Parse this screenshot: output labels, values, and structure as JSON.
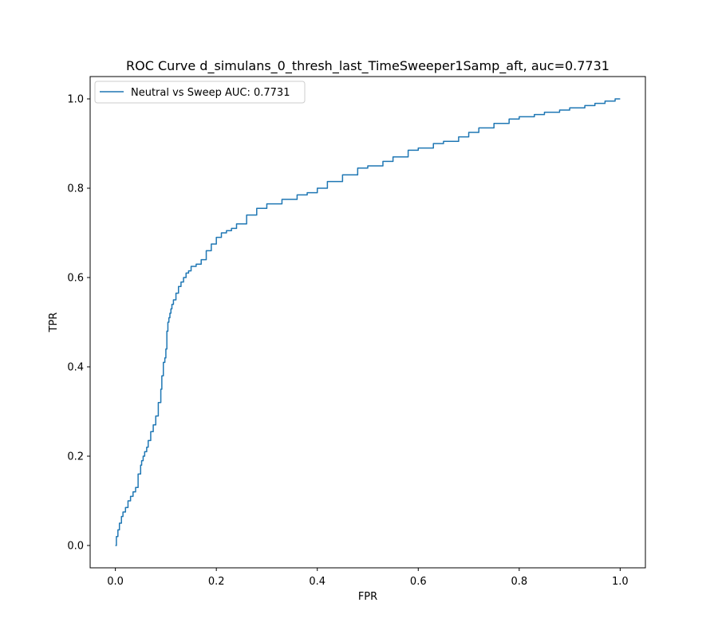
{
  "chart_data": {
    "type": "line",
    "title": "ROC Curve d_simulans_0_thresh_last_TimeSweeper1Samp_aft, auc=0.7731",
    "xlabel": "FPR",
    "ylabel": "TPR",
    "xlim": [
      -0.05,
      1.05
    ],
    "ylim": [
      -0.05,
      1.05
    ],
    "xticks": [
      0.0,
      0.2,
      0.4,
      0.6,
      0.8,
      1.0
    ],
    "yticks": [
      0.0,
      0.2,
      0.4,
      0.6,
      0.8,
      1.0
    ],
    "xtick_labels": [
      "0.0",
      "0.2",
      "0.4",
      "0.6",
      "0.8",
      "1.0"
    ],
    "ytick_labels": [
      "0.0",
      "0.2",
      "0.4",
      "0.6",
      "0.8",
      "1.0"
    ],
    "grid": false,
    "legend_position": "upper left",
    "series": [
      {
        "name": "Neutral vs Sweep AUC: 0.7731",
        "color": "#1f77b4",
        "x": [
          0.0,
          0.002,
          0.005,
          0.008,
          0.012,
          0.015,
          0.02,
          0.025,
          0.03,
          0.035,
          0.04,
          0.045,
          0.05,
          0.052,
          0.055,
          0.058,
          0.062,
          0.065,
          0.07,
          0.075,
          0.08,
          0.085,
          0.09,
          0.092,
          0.095,
          0.098,
          0.1,
          0.102,
          0.104,
          0.106,
          0.108,
          0.11,
          0.112,
          0.115,
          0.12,
          0.125,
          0.13,
          0.135,
          0.14,
          0.145,
          0.15,
          0.16,
          0.17,
          0.18,
          0.19,
          0.2,
          0.21,
          0.22,
          0.23,
          0.24,
          0.26,
          0.28,
          0.3,
          0.33,
          0.36,
          0.38,
          0.4,
          0.42,
          0.45,
          0.48,
          0.5,
          0.53,
          0.55,
          0.58,
          0.6,
          0.63,
          0.65,
          0.68,
          0.7,
          0.72,
          0.75,
          0.78,
          0.8,
          0.83,
          0.85,
          0.88,
          0.9,
          0.93,
          0.95,
          0.97,
          0.99,
          1.0
        ],
        "y": [
          0.0,
          0.02,
          0.035,
          0.05,
          0.065,
          0.075,
          0.085,
          0.1,
          0.11,
          0.12,
          0.13,
          0.16,
          0.18,
          0.19,
          0.2,
          0.21,
          0.22,
          0.235,
          0.255,
          0.27,
          0.29,
          0.32,
          0.35,
          0.38,
          0.41,
          0.42,
          0.44,
          0.48,
          0.5,
          0.51,
          0.52,
          0.53,
          0.54,
          0.55,
          0.565,
          0.58,
          0.59,
          0.6,
          0.61,
          0.615,
          0.625,
          0.63,
          0.64,
          0.66,
          0.675,
          0.69,
          0.7,
          0.705,
          0.71,
          0.72,
          0.74,
          0.755,
          0.765,
          0.775,
          0.785,
          0.79,
          0.8,
          0.815,
          0.83,
          0.845,
          0.85,
          0.86,
          0.87,
          0.885,
          0.89,
          0.9,
          0.905,
          0.915,
          0.925,
          0.935,
          0.945,
          0.955,
          0.96,
          0.965,
          0.97,
          0.975,
          0.98,
          0.985,
          0.99,
          0.995,
          1.0,
          1.0
        ]
      }
    ]
  }
}
